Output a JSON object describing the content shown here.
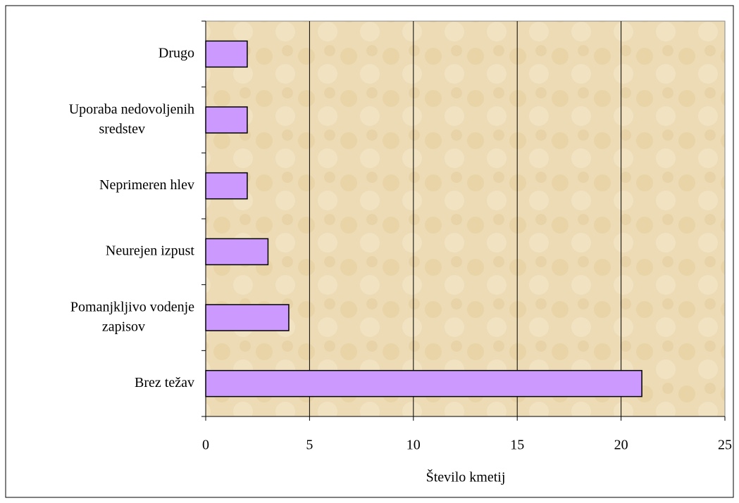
{
  "chart_data": {
    "type": "bar",
    "orientation": "horizontal",
    "x_label": "Število kmetij",
    "categories": [
      "Brez težav",
      "Pomanjkljivo vodenje zapisov",
      "Neurejen izpust",
      "Neprimeren hlev",
      "Uporaba nedovoljenih sredstev",
      "Drugo"
    ],
    "values": [
      21,
      4,
      3,
      2,
      2,
      2
    ],
    "color": "#cc99ff",
    "xlim": [
      0,
      25
    ],
    "xticks": [
      0,
      5,
      10,
      15,
      20,
      25
    ],
    "grid": true
  }
}
